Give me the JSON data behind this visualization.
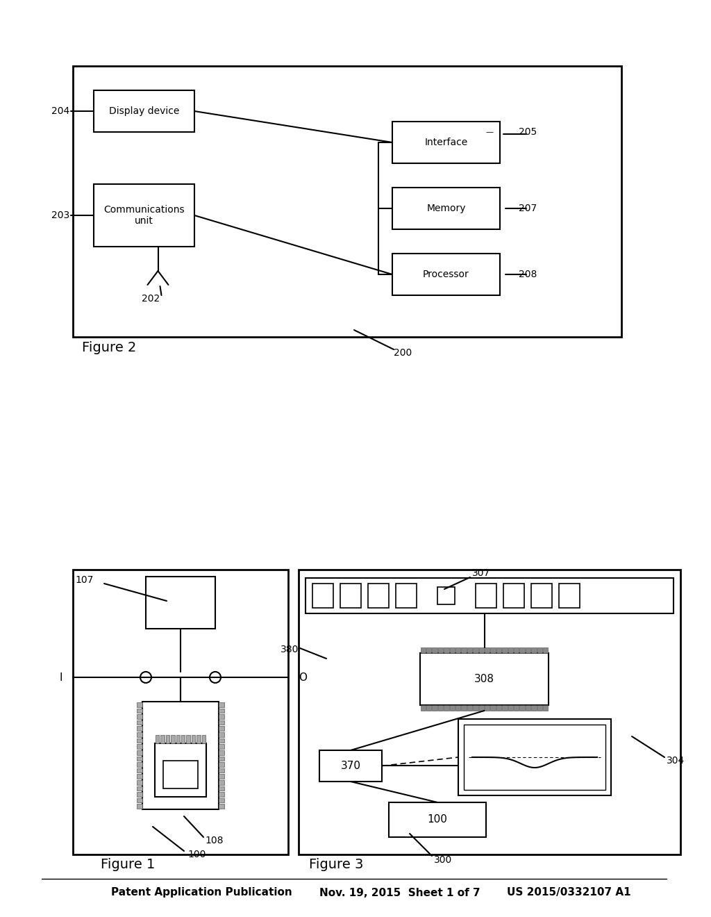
{
  "bg_color": "#ffffff",
  "header_text": "Patent Application Publication",
  "header_date": "Nov. 19, 2015  Sheet 1 of 7",
  "header_patent": "US 2015/0332107 A1",
  "fig1_label": "Figure 1",
  "fig1_ref100": "100",
  "fig1_ref108": "108",
  "fig1_ref107": "107",
  "fig1_refI": "I",
  "fig1_refO": "O",
  "fig2_label": "Figure 2",
  "fig2_ref200": "200",
  "fig2_ref202": "202",
  "fig2_ref203": "203",
  "fig2_ref204": "204",
  "fig2_ref205": "205",
  "fig2_ref207": "207",
  "fig2_ref208": "208",
  "fig2_comm": "Communications\nunit",
  "fig2_proc": "Processor",
  "fig2_mem": "Memory",
  "fig2_iface": "Interface",
  "fig3_label": "Figure 3",
  "fig3_ref300": "300",
  "fig3_ref304": "304",
  "fig3_ref307": "307",
  "fig3_ref308": "308",
  "fig3_ref370": "370",
  "fig3_ref380": "380",
  "fig3_ref100": "100",
  "line_color": "#000000",
  "text_color": "#000000"
}
